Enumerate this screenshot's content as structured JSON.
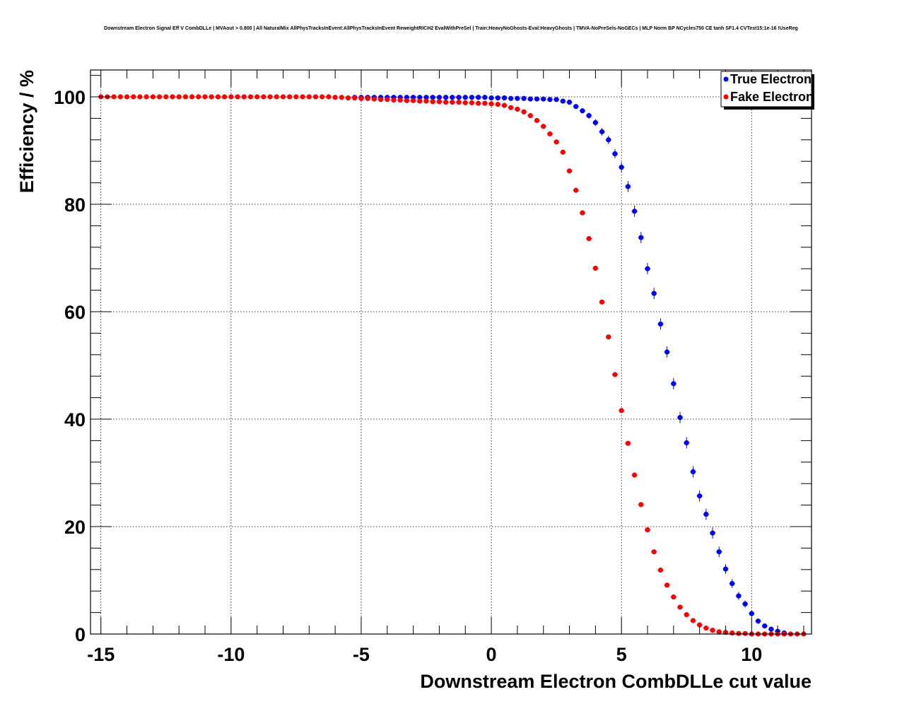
{
  "chart_data": {
    "type": "scatter",
    "title": "Downstream Electron Signal Eff V CombDLLe | MVAout > 0.800 | All NaturalMix AllPhysTracksInEvent:AllPhysTracksInEvent ReweightRICH2 EvalWithPreSel | Train:HeavyNoGhosts-Eval:HeavyGhosts | TMVA-NoPreSels-NoGECs | MLP Norm BP NCycles750 CE tanh SF1.4 CVTest15:1e-16 !UseReg",
    "xlabel": "Downstream Electron CombDLLe cut value",
    "ylabel": "Efficiency / %",
    "xlim": [
      -15.4,
      12.3
    ],
    "ylim": [
      0,
      105
    ],
    "x_ticks": [
      -15,
      -10,
      -5,
      0,
      5,
      10
    ],
    "x_tick_labels": [
      "-15",
      "-10",
      "-5",
      "0",
      "5",
      "10"
    ],
    "y_ticks": [
      0,
      20,
      40,
      60,
      80,
      100
    ],
    "y_tick_labels": [
      "0",
      "20",
      "40",
      "60",
      "80",
      "100"
    ],
    "grid": true,
    "legend_position": "top-right",
    "series": [
      {
        "name": "True Electron",
        "color": "#0000ff",
        "points": [
          [
            -5.25,
            99.9
          ],
          [
            -5.0,
            99.9
          ],
          [
            -4.75,
            99.9
          ],
          [
            -4.5,
            99.9
          ],
          [
            -4.25,
            99.9
          ],
          [
            -4.0,
            99.9
          ],
          [
            -3.75,
            99.9
          ],
          [
            -3.5,
            99.9
          ],
          [
            -3.25,
            99.9
          ],
          [
            -3.0,
            99.9
          ],
          [
            -2.75,
            99.9
          ],
          [
            -2.5,
            99.9
          ],
          [
            -2.25,
            99.9
          ],
          [
            -2.0,
            99.9
          ],
          [
            -1.75,
            99.9
          ],
          [
            -1.5,
            99.9
          ],
          [
            -1.25,
            99.9
          ],
          [
            -1.0,
            99.9
          ],
          [
            -0.75,
            99.9
          ],
          [
            -0.5,
            99.9
          ],
          [
            -0.25,
            99.9
          ],
          [
            0.0,
            99.8
          ],
          [
            0.25,
            99.8
          ],
          [
            0.5,
            99.8
          ],
          [
            0.75,
            99.7
          ],
          [
            1.0,
            99.7
          ],
          [
            1.25,
            99.7
          ],
          [
            1.5,
            99.6
          ],
          [
            1.75,
            99.6
          ],
          [
            2.0,
            99.6
          ],
          [
            2.25,
            99.5
          ],
          [
            2.5,
            99.5
          ],
          [
            2.75,
            99.2
          ],
          [
            3.0,
            99.0
          ],
          [
            3.25,
            98.2
          ],
          [
            3.5,
            97.4
          ],
          [
            3.75,
            96.5
          ],
          [
            4.0,
            95.2
          ],
          [
            4.25,
            93.5
          ],
          [
            4.5,
            92.0
          ],
          [
            4.75,
            89.4
          ],
          [
            5.0,
            86.9
          ],
          [
            5.25,
            83.3
          ],
          [
            5.5,
            78.7
          ],
          [
            5.75,
            73.8
          ],
          [
            6.0,
            68.0
          ],
          [
            6.25,
            63.4
          ],
          [
            6.5,
            57.7
          ],
          [
            6.75,
            52.5
          ],
          [
            7.0,
            46.6
          ],
          [
            7.25,
            40.3
          ],
          [
            7.5,
            35.6
          ],
          [
            7.75,
            30.2
          ],
          [
            8.0,
            25.7
          ],
          [
            8.25,
            22.3
          ],
          [
            8.5,
            18.8
          ],
          [
            8.75,
            15.3
          ],
          [
            9.0,
            12.1
          ],
          [
            9.25,
            9.4
          ],
          [
            9.5,
            7.1
          ],
          [
            9.75,
            5.6
          ],
          [
            10.0,
            3.8
          ],
          [
            10.25,
            2.4
          ],
          [
            10.5,
            1.5
          ],
          [
            10.75,
            0.9
          ],
          [
            11.0,
            0.5
          ],
          [
            11.25,
            0.2
          ]
        ]
      },
      {
        "name": "Fake Electron",
        "color": "#ff0000",
        "points": [
          [
            -15.0,
            100.0
          ],
          [
            -14.75,
            100.0
          ],
          [
            -14.5,
            100.0
          ],
          [
            -14.25,
            100.0
          ],
          [
            -14.0,
            100.0
          ],
          [
            -13.75,
            100.0
          ],
          [
            -13.5,
            100.0
          ],
          [
            -13.25,
            100.0
          ],
          [
            -13.0,
            100.0
          ],
          [
            -12.75,
            100.0
          ],
          [
            -12.5,
            100.0
          ],
          [
            -12.25,
            100.0
          ],
          [
            -12.0,
            100.0
          ],
          [
            -11.75,
            100.0
          ],
          [
            -11.5,
            100.0
          ],
          [
            -11.25,
            100.0
          ],
          [
            -11.0,
            100.0
          ],
          [
            -10.75,
            100.0
          ],
          [
            -10.5,
            100.0
          ],
          [
            -10.25,
            100.0
          ],
          [
            -10.0,
            100.0
          ],
          [
            -9.75,
            100.0
          ],
          [
            -9.5,
            100.0
          ],
          [
            -9.25,
            100.0
          ],
          [
            -9.0,
            100.0
          ],
          [
            -8.75,
            100.0
          ],
          [
            -8.5,
            100.0
          ],
          [
            -8.25,
            100.0
          ],
          [
            -8.0,
            100.0
          ],
          [
            -7.75,
            100.0
          ],
          [
            -7.5,
            100.0
          ],
          [
            -7.25,
            100.0
          ],
          [
            -7.0,
            100.0
          ],
          [
            -6.75,
            100.0
          ],
          [
            -6.5,
            100.0
          ],
          [
            -6.25,
            100.0
          ],
          [
            -6.0,
            99.9
          ],
          [
            -5.75,
            99.9
          ],
          [
            -5.5,
            99.8
          ],
          [
            -5.25,
            99.8
          ],
          [
            -5.0,
            99.7
          ],
          [
            -4.75,
            99.7
          ],
          [
            -4.5,
            99.6
          ],
          [
            -4.25,
            99.5
          ],
          [
            -4.0,
            99.5
          ],
          [
            -3.75,
            99.4
          ],
          [
            -3.5,
            99.4
          ],
          [
            -3.25,
            99.3
          ],
          [
            -3.0,
            99.3
          ],
          [
            -2.75,
            99.2
          ],
          [
            -2.5,
            99.2
          ],
          [
            -2.25,
            99.1
          ],
          [
            -2.0,
            99.1
          ],
          [
            -1.75,
            99.0
          ],
          [
            -1.5,
            99.0
          ],
          [
            -1.25,
            99.0
          ],
          [
            -1.0,
            98.9
          ],
          [
            -0.75,
            98.9
          ],
          [
            -0.5,
            98.8
          ],
          [
            -0.25,
            98.8
          ],
          [
            0.0,
            98.7
          ],
          [
            0.25,
            98.6
          ],
          [
            0.5,
            98.4
          ],
          [
            0.75,
            98.0
          ],
          [
            1.0,
            97.7
          ],
          [
            1.25,
            97.2
          ],
          [
            1.5,
            96.5
          ],
          [
            1.75,
            95.6
          ],
          [
            2.0,
            94.5
          ],
          [
            2.25,
            93.1
          ],
          [
            2.5,
            91.6
          ],
          [
            2.75,
            89.7
          ],
          [
            3.0,
            86.2
          ],
          [
            3.25,
            82.6
          ],
          [
            3.5,
            78.4
          ],
          [
            3.75,
            73.6
          ],
          [
            4.0,
            68.1
          ],
          [
            4.25,
            61.8
          ],
          [
            4.5,
            55.3
          ],
          [
            4.75,
            48.3
          ],
          [
            5.0,
            41.6
          ],
          [
            5.25,
            35.5
          ],
          [
            5.5,
            29.6
          ],
          [
            5.75,
            24.1
          ],
          [
            6.0,
            19.4
          ],
          [
            6.25,
            15.3
          ],
          [
            6.5,
            11.9
          ],
          [
            6.75,
            9.1
          ],
          [
            7.0,
            6.9
          ],
          [
            7.25,
            5.0
          ],
          [
            7.5,
            3.6
          ],
          [
            7.75,
            2.5
          ],
          [
            8.0,
            1.7
          ],
          [
            8.25,
            1.1
          ],
          [
            8.5,
            0.7
          ],
          [
            8.75,
            0.4
          ],
          [
            9.0,
            0.3
          ],
          [
            9.25,
            0.2
          ],
          [
            9.5,
            0.1
          ],
          [
            9.75,
            0.1
          ],
          [
            10.0,
            0.0
          ],
          [
            10.25,
            0.0
          ],
          [
            10.5,
            0.0
          ],
          [
            10.75,
            0.0
          ],
          [
            11.0,
            0.0
          ],
          [
            11.25,
            0.0
          ],
          [
            11.5,
            0.0
          ],
          [
            11.75,
            0.0
          ],
          [
            12.0,
            0.0
          ]
        ]
      }
    ]
  }
}
